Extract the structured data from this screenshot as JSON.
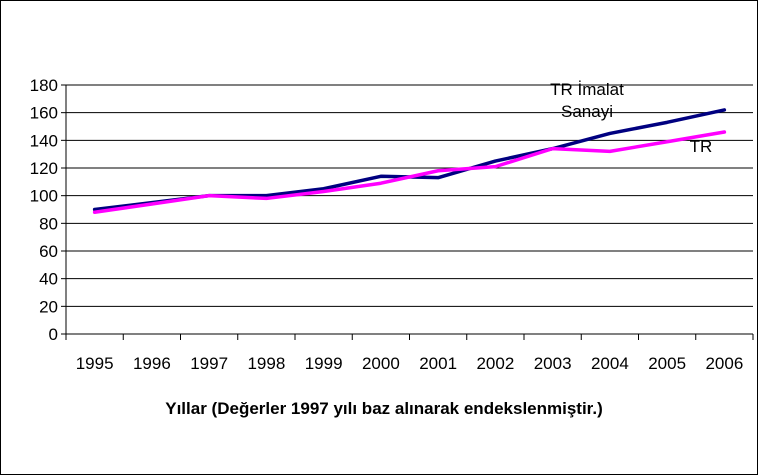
{
  "chart_data": {
    "type": "line",
    "title": "",
    "xlabel": "Yıllar (Değerler 1997 yılı baz alınarak endekslenmiştir.)",
    "ylabel": "",
    "ylim": [
      0,
      180
    ],
    "yticks": [
      0,
      20,
      40,
      60,
      80,
      100,
      120,
      140,
      160,
      180
    ],
    "x": [
      "1995",
      "1996",
      "1997",
      "1998",
      "1999",
      "2000",
      "2001",
      "2002",
      "2003",
      "2004",
      "2005",
      "2006"
    ],
    "grid": true,
    "series": [
      {
        "name": "TR İmalat Sanayi",
        "label_lines": [
          "TR İmalat",
          "Sanayi"
        ],
        "color": "#000080",
        "values": [
          90,
          95,
          100,
          100,
          105,
          114,
          113,
          125,
          134,
          145,
          153,
          162
        ]
      },
      {
        "name": "TR",
        "label_lines": [
          "TR"
        ],
        "color": "#ff00ff",
        "values": [
          88,
          94,
          100,
          98,
          103,
          109,
          118,
          121,
          134,
          132,
          139,
          146
        ]
      }
    ]
  }
}
